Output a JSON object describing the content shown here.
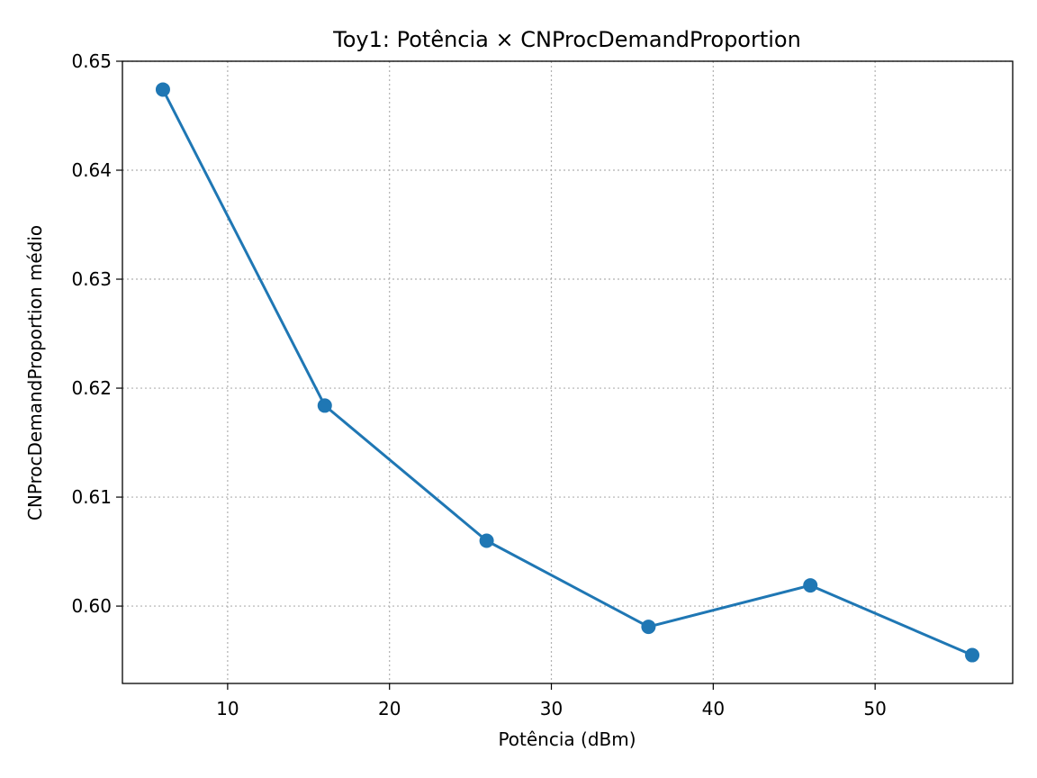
{
  "chart_data": {
    "type": "line",
    "title": "Toy1: Potência × CNProcDemandProportion",
    "xlabel": "Potência (dBm)",
    "ylabel": "CNProcDemandProportion médio",
    "x": [
      6,
      16,
      26,
      36,
      46,
      56
    ],
    "series": [
      {
        "values": [
          0.6474,
          0.6184,
          0.606,
          0.5981,
          0.6019,
          0.5955
        ]
      }
    ],
    "xlim": [
      3.5,
      58.5
    ],
    "ylim": [
      0.5929,
      0.65
    ],
    "xticks": [
      10,
      20,
      30,
      40,
      50
    ],
    "yticks": [
      0.6,
      0.61,
      0.62,
      0.63,
      0.64,
      0.65
    ],
    "ytick_labels": [
      "0.60",
      "0.61",
      "0.62",
      "0.63",
      "0.64",
      "0.65"
    ],
    "grid": true,
    "grid_style": "dotted",
    "legend": "none",
    "colors": {
      "series": "#1f77b4",
      "grid": "#b0b0b0",
      "axes": "#000000"
    }
  }
}
